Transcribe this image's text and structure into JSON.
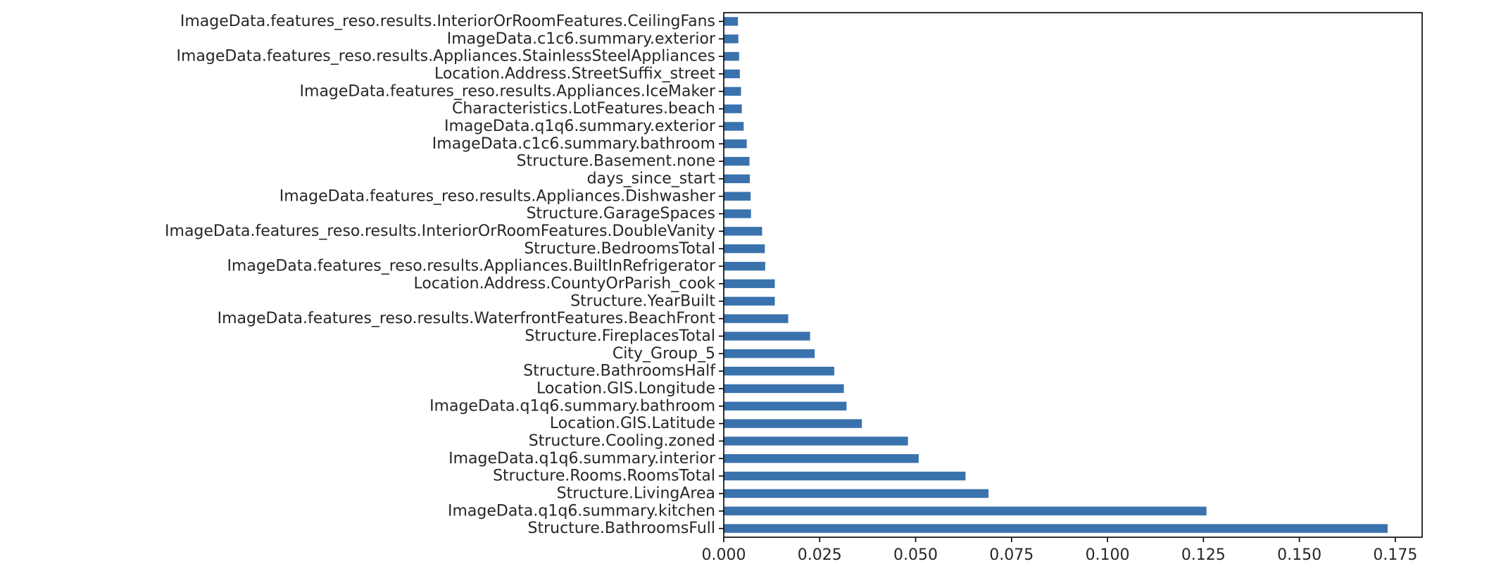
{
  "chart_data": {
    "type": "bar",
    "orientation": "horizontal",
    "title": "",
    "xlabel": "",
    "ylabel": "",
    "xlim": [
      0,
      0.182
    ],
    "grid": false,
    "legend": "none",
    "bar_color": "#3a72ad",
    "categories": [
      "ImageData.features_reso.results.InteriorOrRoomFeatures.CeilingFans",
      "ImageData.c1c6.summary.exterior",
      "ImageData.features_reso.results.Appliances.StainlessSteelAppliances",
      "Location.Address.StreetSuffix_street",
      "ImageData.features_reso.results.Appliances.IceMaker",
      "Characteristics.LotFeatures.beach",
      "ImageData.q1q6.summary.exterior",
      "ImageData.c1c6.summary.bathroom",
      "Structure.Basement.none",
      "days_since_start",
      "ImageData.features_reso.results.Appliances.Dishwasher",
      "Structure.GarageSpaces",
      "ImageData.features_reso.results.InteriorOrRoomFeatures.DoubleVanity",
      "Structure.BedroomsTotal",
      "ImageData.features_reso.results.Appliances.BuiltInRefrigerator",
      "Location.Address.CountyOrParish_cook",
      "Structure.YearBuilt",
      "ImageData.features_reso.results.WaterfrontFeatures.BeachFront",
      "Structure.FireplacesTotal",
      "City_Group_5",
      "Structure.BathroomsHalf",
      "Location.GIS.Longitude",
      "ImageData.q1q6.summary.bathroom",
      "Location.GIS.Latitude",
      "Structure.Cooling.zoned",
      "ImageData.q1q6.summary.interior",
      "Structure.Rooms.RoomsTotal",
      "Structure.LivingArea",
      "ImageData.q1q6.summary.kitchen",
      "Structure.BathroomsFull"
    ],
    "values": [
      0.0037,
      0.0038,
      0.004,
      0.0042,
      0.0045,
      0.0047,
      0.0052,
      0.006,
      0.0067,
      0.0068,
      0.007,
      0.0071,
      0.01,
      0.0107,
      0.0108,
      0.0133,
      0.0133,
      0.0168,
      0.0225,
      0.0237,
      0.0288,
      0.0313,
      0.032,
      0.036,
      0.048,
      0.0508,
      0.063,
      0.069,
      0.1258,
      0.173
    ],
    "xticks": [
      0.0,
      0.025,
      0.05,
      0.075,
      0.1,
      0.125,
      0.15,
      0.175
    ],
    "xtick_labels": [
      "0.000",
      "0.025",
      "0.050",
      "0.075",
      "0.100",
      "0.125",
      "0.150",
      "0.175"
    ]
  }
}
